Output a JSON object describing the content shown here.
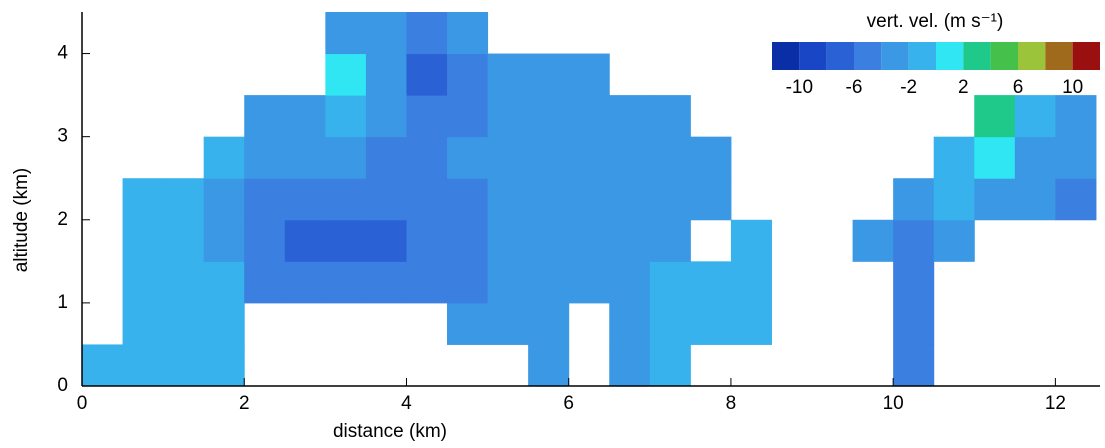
{
  "chart_data": {
    "type": "heatmap",
    "xlabel": "distance (km)",
    "ylabel": "altitude (km)",
    "xlim": [
      0,
      12.55
    ],
    "ylim": [
      0,
      4.5
    ],
    "xticks": [
      0,
      2,
      4,
      6,
      8,
      10,
      12
    ],
    "yticks": [
      0,
      1,
      2,
      3,
      4
    ],
    "x": [
      0.25,
      0.75,
      1.25,
      1.75,
      2.25,
      2.75,
      3.25,
      3.75,
      4.25,
      4.75,
      5.25,
      5.75,
      6.25,
      6.75,
      7.25,
      7.75,
      8.25,
      8.75,
      9.25,
      9.75,
      10.25,
      10.75,
      11.25,
      11.75,
      12.25
    ],
    "y": [
      0.25,
      0.75,
      1.25,
      1.75,
      2.25,
      2.75,
      3.25,
      3.75,
      4.25
    ],
    "z": [
      [
        -2,
        -2,
        -2,
        -2,
        null,
        null,
        null,
        null,
        null,
        null,
        null,
        -3,
        null,
        -3,
        -2,
        null,
        null,
        null,
        null,
        null,
        -5,
        null,
        null,
        null,
        null
      ],
      [
        null,
        -2,
        -2,
        -2,
        null,
        null,
        null,
        null,
        null,
        -4,
        -3,
        -3,
        null,
        -3,
        -2,
        -2,
        -2,
        null,
        null,
        null,
        -5,
        null,
        null,
        null,
        null
      ],
      [
        null,
        -2,
        -2,
        -2,
        -5,
        -6,
        -6,
        -5,
        -5,
        -5,
        -4,
        -4,
        -3,
        -3,
        -2,
        -2,
        -2,
        null,
        null,
        null,
        -5,
        null,
        null,
        null,
        null
      ],
      [
        null,
        -2,
        -2,
        -3,
        -6,
        -7,
        -7,
        -7,
        -6,
        -5,
        -4,
        -4,
        -3,
        -3,
        -3,
        null,
        -2,
        null,
        null,
        -3,
        -5,
        -3,
        null,
        null,
        null
      ],
      [
        null,
        -2,
        -2,
        -3,
        -5,
        -6,
        -6,
        -6,
        -5,
        -5,
        -4,
        -4,
        -4,
        -4,
        -4,
        -3,
        null,
        null,
        null,
        null,
        -3,
        -2,
        -3,
        -3,
        -5
      ],
      [
        null,
        null,
        null,
        -2,
        -3,
        -4,
        -4,
        -5,
        -5,
        -4,
        -4,
        -3,
        -3,
        -3,
        -3,
        -3,
        null,
        null,
        null,
        null,
        null,
        -2,
        0,
        -3,
        -4
      ],
      [
        null,
        null,
        null,
        null,
        -3,
        -3,
        -2,
        -4,
        -6,
        -5,
        -4,
        -4,
        -3,
        -3,
        -3,
        null,
        null,
        null,
        null,
        null,
        null,
        null,
        2,
        -2,
        -4
      ],
      [
        null,
        null,
        null,
        null,
        null,
        null,
        1,
        -4,
        -7,
        -5,
        -4,
        -3,
        -3,
        null,
        null,
        null,
        null,
        null,
        null,
        null,
        null,
        null,
        null,
        null,
        null
      ],
      [
        null,
        null,
        null,
        null,
        null,
        null,
        -3,
        -3,
        -5,
        -3,
        null,
        null,
        null,
        null,
        null,
        null,
        null,
        null,
        null,
        null,
        null,
        null,
        null,
        null,
        null
      ]
    ],
    "colorbar_label": "vert. vel. (m s⁻¹)",
    "color_levels": [
      -12,
      -10,
      -8,
      -6,
      -4,
      -2,
      0,
      2,
      4,
      6,
      8,
      10,
      12
    ],
    "colors": [
      "#0a2ea6",
      "#1846c4",
      "#2a62d6",
      "#3b7fe0",
      "#3a98e4",
      "#38b2ec",
      "#30e6f2",
      "#1ec98a",
      "#45c04a",
      "#9cc43a",
      "#a06a1c",
      "#9a1010"
    ],
    "colorbar_ticks": [
      -10,
      -6,
      -2,
      2,
      6,
      10
    ]
  }
}
